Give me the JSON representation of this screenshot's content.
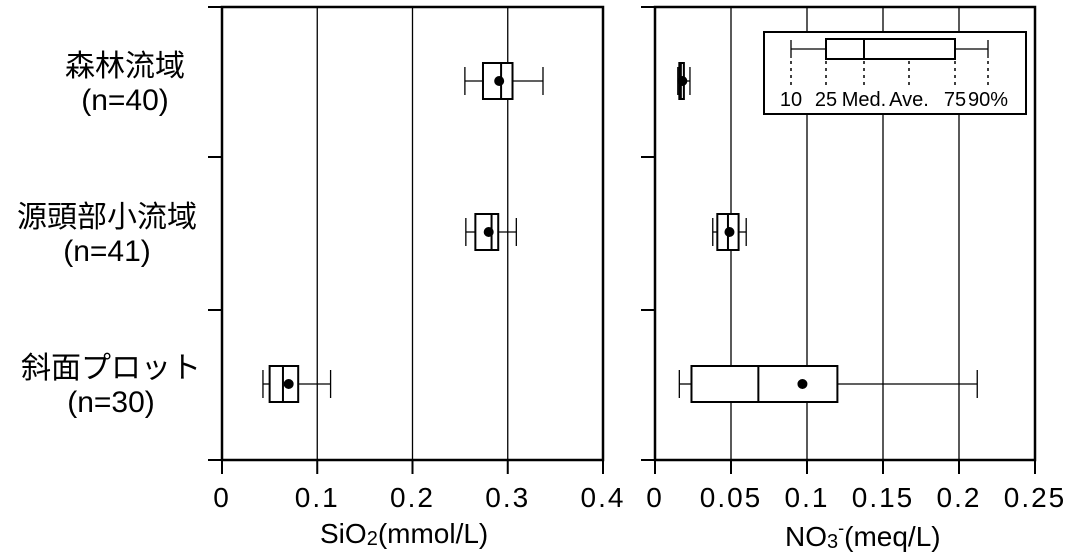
{
  "categories": [
    {
      "name": "森林流域",
      "n": "(n=40)"
    },
    {
      "name": "源頭部小流域",
      "n": "(n=41)"
    },
    {
      "name": "斜面プロット",
      "n": "(n=30)"
    }
  ],
  "chart_data": [
    {
      "type": "box",
      "xlim": [
        0,
        0.4
      ],
      "xticks": [
        "0",
        "0.1",
        "0.2",
        "0.3",
        "0.4"
      ],
      "xlabel_main": "SiO",
      "xlabel_sub": "2",
      "xlabel_sup": "",
      "xlabel_tail": "(mmol/L)",
      "grid": "vertical",
      "boxes": [
        {
          "category": "森林流域",
          "p10": 0.255,
          "p25": 0.274,
          "median": 0.293,
          "mean": 0.291,
          "p75": 0.305,
          "p90": 0.337
        },
        {
          "category": "源頭部小流域",
          "p10": 0.256,
          "p25": 0.266,
          "median": 0.283,
          "mean": 0.28,
          "p75": 0.29,
          "p90": 0.309
        },
        {
          "category": "斜面プロット",
          "p10": 0.043,
          "p25": 0.05,
          "median": 0.064,
          "mean": 0.07,
          "p75": 0.08,
          "p90": 0.114
        }
      ]
    },
    {
      "type": "box",
      "xlim": [
        0,
        0.25
      ],
      "xticks": [
        "0",
        "0.05",
        "0.1",
        "0.15",
        "0.2",
        "0.25"
      ],
      "xlabel_main": "NO",
      "xlabel_sub": "3",
      "xlabel_sup": "-",
      "xlabel_tail": "(meq/L)",
      "grid": "vertical",
      "boxes": [
        {
          "category": "森林流域",
          "p10": 0.015,
          "p25": 0.016,
          "median": 0.017,
          "mean": 0.018,
          "p75": 0.019,
          "p90": 0.023
        },
        {
          "category": "源頭部小流域",
          "p10": 0.038,
          "p25": 0.041,
          "median": 0.048,
          "mean": 0.049,
          "p75": 0.055,
          "p90": 0.06
        },
        {
          "category": "斜面プロット",
          "p10": 0.016,
          "p25": 0.024,
          "median": 0.068,
          "mean": 0.097,
          "p75": 0.12,
          "p90": 0.212
        }
      ]
    }
  ],
  "legend": {
    "labels": [
      "10",
      "25",
      "Med.",
      "Ave.",
      "75",
      "90%"
    ]
  }
}
